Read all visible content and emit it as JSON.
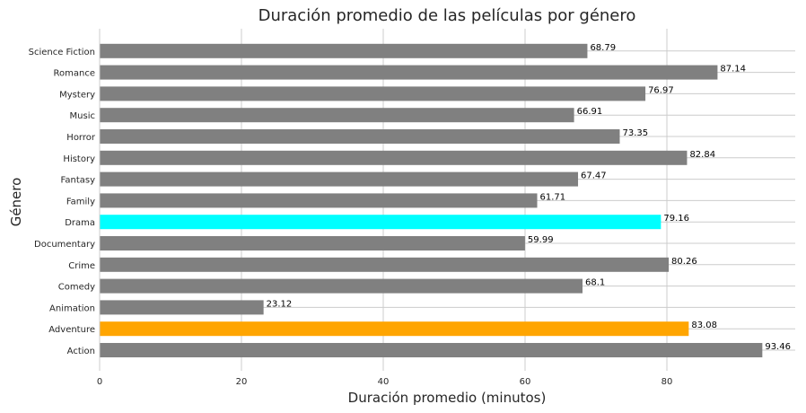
{
  "chart_data": {
    "type": "bar",
    "orientation": "horizontal",
    "title": "Duración promedio de las películas por género",
    "xlabel": "Duración promedio (minutos)",
    "ylabel": "Género",
    "xlim": [
      0,
      98.1
    ],
    "xticks": [
      0,
      20,
      40,
      60,
      80
    ],
    "grid": true,
    "categories": [
      "Action",
      "Adventure",
      "Animation",
      "Comedy",
      "Crime",
      "Documentary",
      "Drama",
      "Family",
      "Fantasy",
      "History",
      "Horror",
      "Music",
      "Mystery",
      "Romance",
      "Science Fiction"
    ],
    "values": [
      93.46,
      83.08,
      23.12,
      68.1,
      80.26,
      59.99,
      79.16,
      61.71,
      67.47,
      82.84,
      73.35,
      66.91,
      76.97,
      87.14,
      68.79
    ],
    "value_labels": [
      "93.46",
      "83.08",
      "23.12",
      "68.1",
      "80.26",
      "59.99",
      "79.16",
      "61.71",
      "67.47",
      "82.84",
      "73.35",
      "66.91",
      "76.97",
      "87.14",
      "68.79"
    ],
    "colors": [
      "#808080",
      "#ffa500",
      "#808080",
      "#808080",
      "#808080",
      "#808080",
      "#00ffff",
      "#808080",
      "#808080",
      "#808080",
      "#808080",
      "#808080",
      "#808080",
      "#808080",
      "#808080"
    ]
  }
}
